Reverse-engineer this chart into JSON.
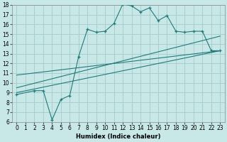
{
  "main_x": [
    0,
    2,
    3,
    4,
    5,
    6,
    7,
    8,
    9,
    10,
    11,
    12,
    13,
    14,
    15,
    16,
    17,
    18,
    19,
    20,
    21,
    22,
    23
  ],
  "main_y": [
    8.8,
    9.2,
    9.2,
    6.2,
    8.3,
    8.7,
    12.7,
    15.5,
    15.2,
    15.3,
    16.1,
    18.1,
    17.9,
    17.3,
    17.7,
    16.4,
    16.9,
    15.3,
    15.2,
    15.3,
    15.3,
    13.3,
    13.3
  ],
  "line1_x": [
    0,
    23
  ],
  "line1_y": [
    9.0,
    13.3
  ],
  "line2_x": [
    0,
    23
  ],
  "line2_y": [
    9.5,
    14.8
  ],
  "line3_x": [
    0,
    23
  ],
  "line3_y": [
    10.8,
    13.3
  ],
  "color_main": "#217a7a",
  "color_line": "#217a7a",
  "bg_color": "#c8e8e8",
  "grid_color": "#aacece",
  "xlim": [
    -0.5,
    23.5
  ],
  "ylim": [
    6,
    18
  ],
  "yticks": [
    6,
    7,
    8,
    9,
    10,
    11,
    12,
    13,
    14,
    15,
    16,
    17,
    18
  ],
  "xticks": [
    0,
    1,
    2,
    3,
    4,
    5,
    6,
    7,
    8,
    9,
    10,
    11,
    12,
    13,
    14,
    15,
    16,
    17,
    18,
    19,
    20,
    21,
    22,
    23
  ],
  "xlabel": "Humidex (Indice chaleur)",
  "tick_fontsize": 5.5,
  "xlabel_fontsize": 6.0
}
